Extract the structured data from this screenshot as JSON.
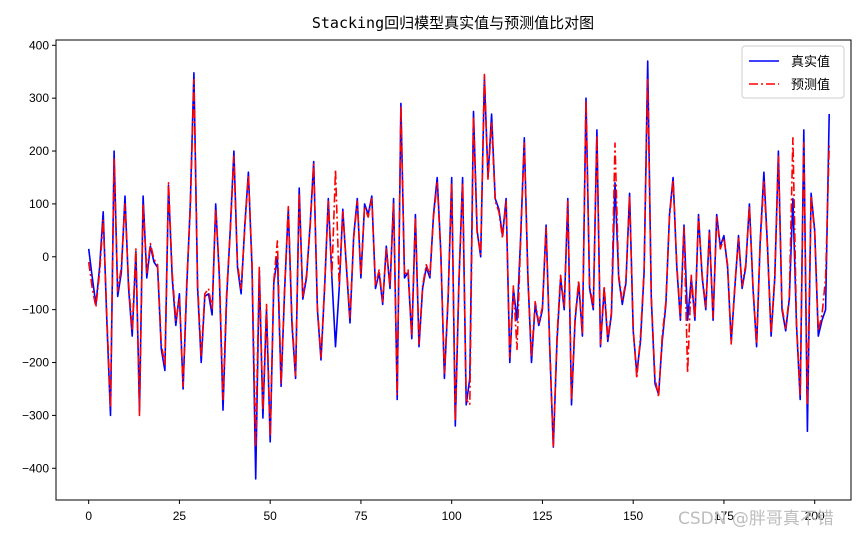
{
  "chart_data": {
    "type": "line",
    "title": "Stacking回归模型真实值与预测值比对图",
    "xlabel": "",
    "ylabel": "",
    "xlim": [
      -9,
      210
    ],
    "ylim": [
      -460,
      410
    ],
    "xticks": [
      0,
      25,
      50,
      75,
      100,
      125,
      150,
      175,
      200
    ],
    "yticks": [
      400,
      300,
      200,
      100,
      0,
      -100,
      -200,
      -300,
      -400
    ],
    "grid": false,
    "legend_position": "upper right",
    "series": [
      {
        "name": "真实值",
        "color": "#0000ff",
        "style": "solid",
        "values": [
          15,
          -40,
          -90,
          -20,
          85,
          -120,
          -300,
          200,
          -75,
          -30,
          115,
          -60,
          -150,
          10,
          -290,
          115,
          -40,
          20,
          -10,
          -20,
          -175,
          -215,
          135,
          -40,
          -130,
          -70,
          -250,
          -60,
          100,
          348,
          -60,
          -200,
          -75,
          -70,
          -110,
          100,
          -40,
          -290,
          -80,
          50,
          200,
          -20,
          -70,
          60,
          160,
          -20,
          -420,
          -25,
          -305,
          -100,
          -350,
          -50,
          0,
          -245,
          -60,
          90,
          -130,
          -230,
          130,
          -80,
          -40,
          60,
          180,
          -100,
          -195,
          -60,
          110,
          -40,
          -170,
          -60,
          90,
          -20,
          -125,
          40,
          110,
          -40,
          100,
          80,
          115,
          -60,
          -30,
          -90,
          20,
          -60,
          110,
          -270,
          290,
          -40,
          -30,
          -155,
          80,
          -170,
          -60,
          -20,
          -40,
          80,
          150,
          10,
          -230,
          -80,
          150,
          -320,
          -50,
          150,
          -280,
          -230,
          275,
          50,
          0,
          340,
          150,
          270,
          110,
          90,
          40,
          110,
          -200,
          -60,
          -120,
          40,
          225,
          -40,
          -200,
          -90,
          -130,
          -100,
          60,
          -170,
          -360,
          -160,
          -40,
          -100,
          110,
          -280,
          -120,
          -50,
          -150,
          300,
          -60,
          -100,
          240,
          -170,
          -60,
          -160,
          -110,
          140,
          -40,
          -90,
          -50,
          120,
          -140,
          -220,
          -160,
          -30,
          370,
          -80,
          -240,
          -260,
          -160,
          -90,
          80,
          150,
          -20,
          -120,
          60,
          -120,
          -40,
          -120,
          80,
          -40,
          -100,
          50,
          -120,
          80,
          20,
          40,
          -20,
          -160,
          -60,
          40,
          -60,
          -20,
          100,
          -60,
          -170,
          30,
          160,
          20,
          -150,
          -40,
          200,
          -100,
          -140,
          -80,
          110,
          -130,
          -270,
          240,
          -330,
          120,
          50,
          -150,
          -120,
          -100,
          270
        ]
      },
      {
        "name": "预测值",
        "color": "#ff0000",
        "style": "dashdot",
        "values": [
          -10,
          -60,
          -95,
          -30,
          70,
          -110,
          -285,
          185,
          -65,
          -20,
          100,
          -50,
          -140,
          15,
          -300,
          100,
          -30,
          25,
          -5,
          -15,
          -165,
          -205,
          140,
          -30,
          -120,
          -80,
          -245,
          -50,
          90,
          335,
          -50,
          -190,
          -70,
          -60,
          -100,
          90,
          -30,
          -270,
          -70,
          45,
          190,
          -15,
          -60,
          55,
          155,
          -10,
          -360,
          -20,
          -290,
          -90,
          -340,
          -45,
          30,
          -240,
          -55,
          95,
          -120,
          -225,
          120,
          -75,
          -35,
          55,
          175,
          -95,
          -190,
          -55,
          105,
          -35,
          165,
          -55,
          85,
          -15,
          -115,
          35,
          105,
          -35,
          95,
          75,
          110,
          -55,
          -25,
          -85,
          15,
          -55,
          100,
          -260,
          285,
          -35,
          -25,
          -150,
          75,
          -165,
          -55,
          -15,
          -35,
          75,
          140,
          5,
          -220,
          -75,
          140,
          -310,
          -45,
          140,
          -270,
          -280,
          265,
          45,
          5,
          345,
          145,
          255,
          105,
          85,
          35,
          105,
          -190,
          -55,
          -175,
          35,
          215,
          -35,
          -190,
          -85,
          -125,
          -95,
          55,
          -165,
          -360,
          -150,
          -35,
          -95,
          105,
          -270,
          -115,
          -45,
          -145,
          295,
          -55,
          -95,
          230,
          -165,
          -55,
          -155,
          -105,
          215,
          -35,
          -85,
          -45,
          115,
          -135,
          -230,
          -150,
          -25,
          335,
          -75,
          -230,
          -265,
          -150,
          -85,
          75,
          145,
          -15,
          -115,
          55,
          -220,
          -35,
          -115,
          75,
          -35,
          -95,
          45,
          -115,
          75,
          15,
          35,
          -15,
          -165,
          -55,
          35,
          -55,
          -15,
          95,
          -55,
          -165,
          25,
          145,
          15,
          -145,
          -35,
          190,
          -95,
          -135,
          -75,
          225,
          -125,
          -260,
          215,
          -280,
          115,
          45,
          -140,
          -110,
          -40,
          210
        ]
      }
    ]
  },
  "legend": {
    "items": [
      {
        "label": "真实值",
        "color": "#0000ff"
      },
      {
        "label": "预测值",
        "color": "#ff0000"
      }
    ]
  },
  "watermark": "CSDN @胖哥真不错"
}
